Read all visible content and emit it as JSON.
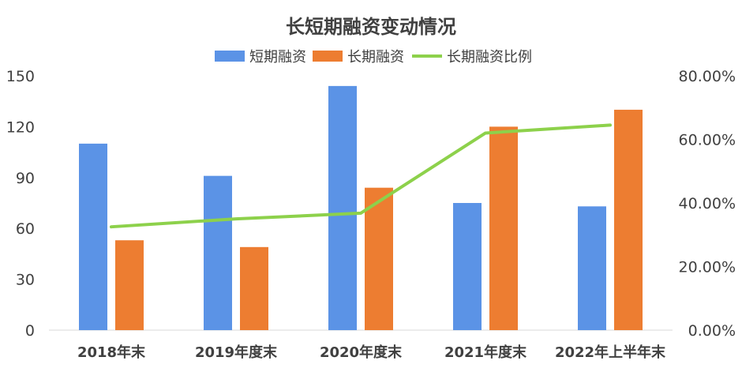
{
  "chart_data": {
    "type": "bar",
    "title": "长短期融资变动情况",
    "categories": [
      "2018年末",
      "2019年度末",
      "2020年度末",
      "2021年度末",
      "2022年上半年末"
    ],
    "series": [
      {
        "name": "短期融资",
        "kind": "bar",
        "axis": "left",
        "color": "#5b93e6",
        "values": [
          110,
          91,
          144,
          75,
          73
        ]
      },
      {
        "name": "长期融资",
        "kind": "bar",
        "axis": "left",
        "color": "#ed7d31",
        "values": [
          53,
          49,
          84,
          120,
          130
        ]
      },
      {
        "name": "长期融资比例",
        "kind": "line",
        "axis": "right",
        "color": "#8dd14b",
        "values": [
          32.5,
          35.0,
          36.8,
          62.0,
          64.5
        ]
      }
    ],
    "y_left": {
      "min": 0,
      "max": 150,
      "ticks": [
        "0",
        "30",
        "60",
        "90",
        "120",
        "150"
      ]
    },
    "y_right": {
      "min": 0,
      "max": 80,
      "ticks": [
        "0.00%",
        "20.00%",
        "40.00%",
        "60.00%",
        "80.00%"
      ]
    },
    "legend_position": "top",
    "grid": false
  }
}
